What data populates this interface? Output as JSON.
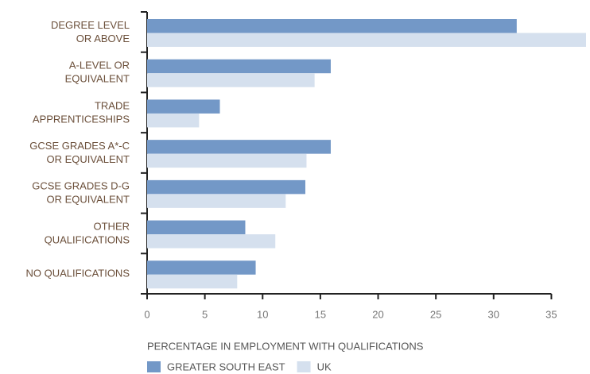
{
  "chart_data": {
    "type": "bar",
    "orientation": "horizontal",
    "categories": [
      "DEGREE LEVEL\nOR ABOVE",
      "A-LEVEL OR\nEQUIVALENT",
      "TRADE\nAPPRENTICESHIPS",
      "GCSE GRADES A*-C\nOR EQUIVALENT",
      "GCSE GRADES D-G\nOR EQUIVALENT",
      "OTHER\nQUALIFICATIONS",
      "NO QUALIFICATIONS"
    ],
    "series": [
      {
        "name": "GREATER SOUTH EAST",
        "color": "#7398c7",
        "values": [
          32.0,
          15.9,
          6.3,
          15.9,
          13.7,
          8.5,
          9.4
        ]
      },
      {
        "name": "UK",
        "color": "#d5e0ee",
        "values": [
          38.0,
          14.5,
          4.5,
          13.8,
          12.0,
          11.1,
          7.8
        ]
      }
    ],
    "xlabel": "PERCENTAGE IN EMPLOYMENT WITH QUALIFICATIONS",
    "xlim": [
      0,
      38
    ],
    "xticks": [
      0,
      5,
      10,
      15,
      20,
      25,
      30,
      35
    ],
    "grid": false
  }
}
